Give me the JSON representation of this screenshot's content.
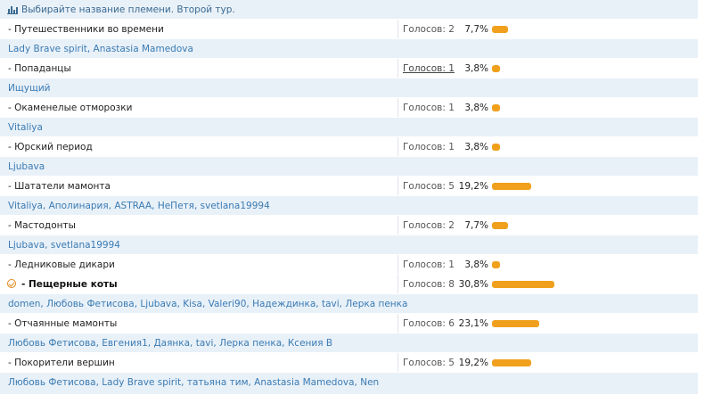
{
  "poll": {
    "title": "Выбирайте название племени. Второй тур.",
    "options": [
      {
        "name": "- Путешественники во времени",
        "votes_label": "Голосов: 2",
        "percent_label": "7,7%",
        "percent": 7.7,
        "voters": "Lady Brave spirit, Anastasia Mamedova"
      },
      {
        "name": "- Попаданцы",
        "votes_label": "Голосов: 1",
        "percent_label": "3,8%",
        "percent": 3.8,
        "voters": "Ищущий"
      },
      {
        "name": "- Окаменелые отморозки",
        "votes_label": "Голосов: 1",
        "percent_label": "3,8%",
        "percent": 3.8,
        "voters": "Vitaliya"
      },
      {
        "name": "- Юрский период",
        "votes_label": "Голосов: 1",
        "percent_label": "3,8%",
        "percent": 3.8,
        "voters": "Ljubava"
      },
      {
        "name": "- Шататели мамонта",
        "votes_label": "Голосов: 5",
        "percent_label": "19,2%",
        "percent": 19.2,
        "voters": "Vitaliya, Аполинария, ASTRAA, НеПетя, svetlana19994"
      },
      {
        "name": "- Мастодонты",
        "votes_label": "Голосов: 2",
        "percent_label": "7,7%",
        "percent": 7.7,
        "voters": "Ljubava, svetlana19994"
      },
      {
        "name": "- Ледниковые дикари",
        "votes_label": "Голосов: 1",
        "percent_label": "3,8%",
        "percent": 3.8,
        "voters": ""
      },
      {
        "name": "- Пещерные коты",
        "votes_label": "Голосов: 8",
        "percent_label": "30,8%",
        "percent": 30.8,
        "voters": "domen, Любовь Фетисова, Ljubava, Kisa, Valeri90, Надеждинка, tavi, Лерка пенка",
        "winner": true
      },
      {
        "name": "- Отчаянные мамонты",
        "votes_label": "Голосов: 6",
        "percent_label": "23,1%",
        "percent": 23.1,
        "voters": "Любовь Фетисова, Евгения1, Даянка, tavi, Лерка пенка, Ксения В"
      },
      {
        "name": "- Покорители вершин",
        "votes_label": "Голосов: 5",
        "percent_label": "19,2%",
        "percent": 19.2,
        "voters": "Любовь Фетисова, Lady Brave spirit, татьяна тим, Anastasia Mamedova, Nen"
      }
    ]
  },
  "colors": {
    "bar": "#f0a01c",
    "link": "#3a7bb3",
    "header_bg": "#e9f1f8"
  },
  "icons": {
    "header": "bar-chart-icon",
    "winner": "check-circle-icon"
  }
}
